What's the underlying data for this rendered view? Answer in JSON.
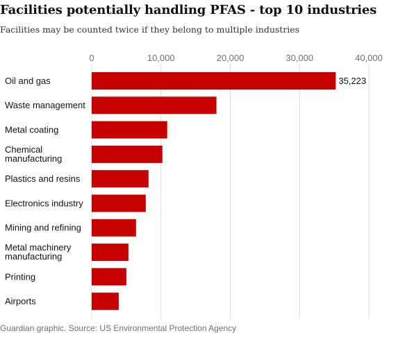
{
  "title": "Facilities potentially handling PFAS - top 10 industries",
  "subtitle": "Facilities may be counted twice if they belong to multiple industries",
  "source": "Guardian graphic. Source: US Environmental Protection Agency",
  "colors": {
    "bar": "#c70000",
    "grid": "#dcdcdc"
  },
  "chart_data": {
    "type": "bar",
    "orientation": "horizontal",
    "title": "Facilities potentially handling PFAS - top 10 industries",
    "subtitle": "Facilities may be counted twice if they belong to multiple industries",
    "xlabel": "",
    "ylabel": "",
    "xlim": [
      0,
      40000
    ],
    "grid": true,
    "ticks": [
      {
        "value": 0,
        "label": "0"
      },
      {
        "value": 10000,
        "label": "10,000"
      },
      {
        "value": 20000,
        "label": "20,000"
      },
      {
        "value": 30000,
        "label": "30,000"
      },
      {
        "value": 40000,
        "label": "40,000"
      }
    ],
    "categories": [
      [
        "Oil and gas"
      ],
      [
        "Waste management"
      ],
      [
        "Metal coating"
      ],
      [
        "Chemical",
        "manufacturing"
      ],
      [
        "Plastics and resins"
      ],
      [
        "Electronics industry"
      ],
      [
        "Mining and refining"
      ],
      [
        "Metal machinery",
        "manufacturing"
      ],
      [
        "Printing"
      ],
      [
        "Airports"
      ]
    ],
    "values": [
      35223,
      18000,
      10900,
      10200,
      8200,
      7800,
      6400,
      5300,
      5000,
      3900
    ],
    "data_labels": [
      "35,223",
      "",
      "",
      "",
      "",
      "",
      "",
      "",
      "",
      ""
    ]
  }
}
